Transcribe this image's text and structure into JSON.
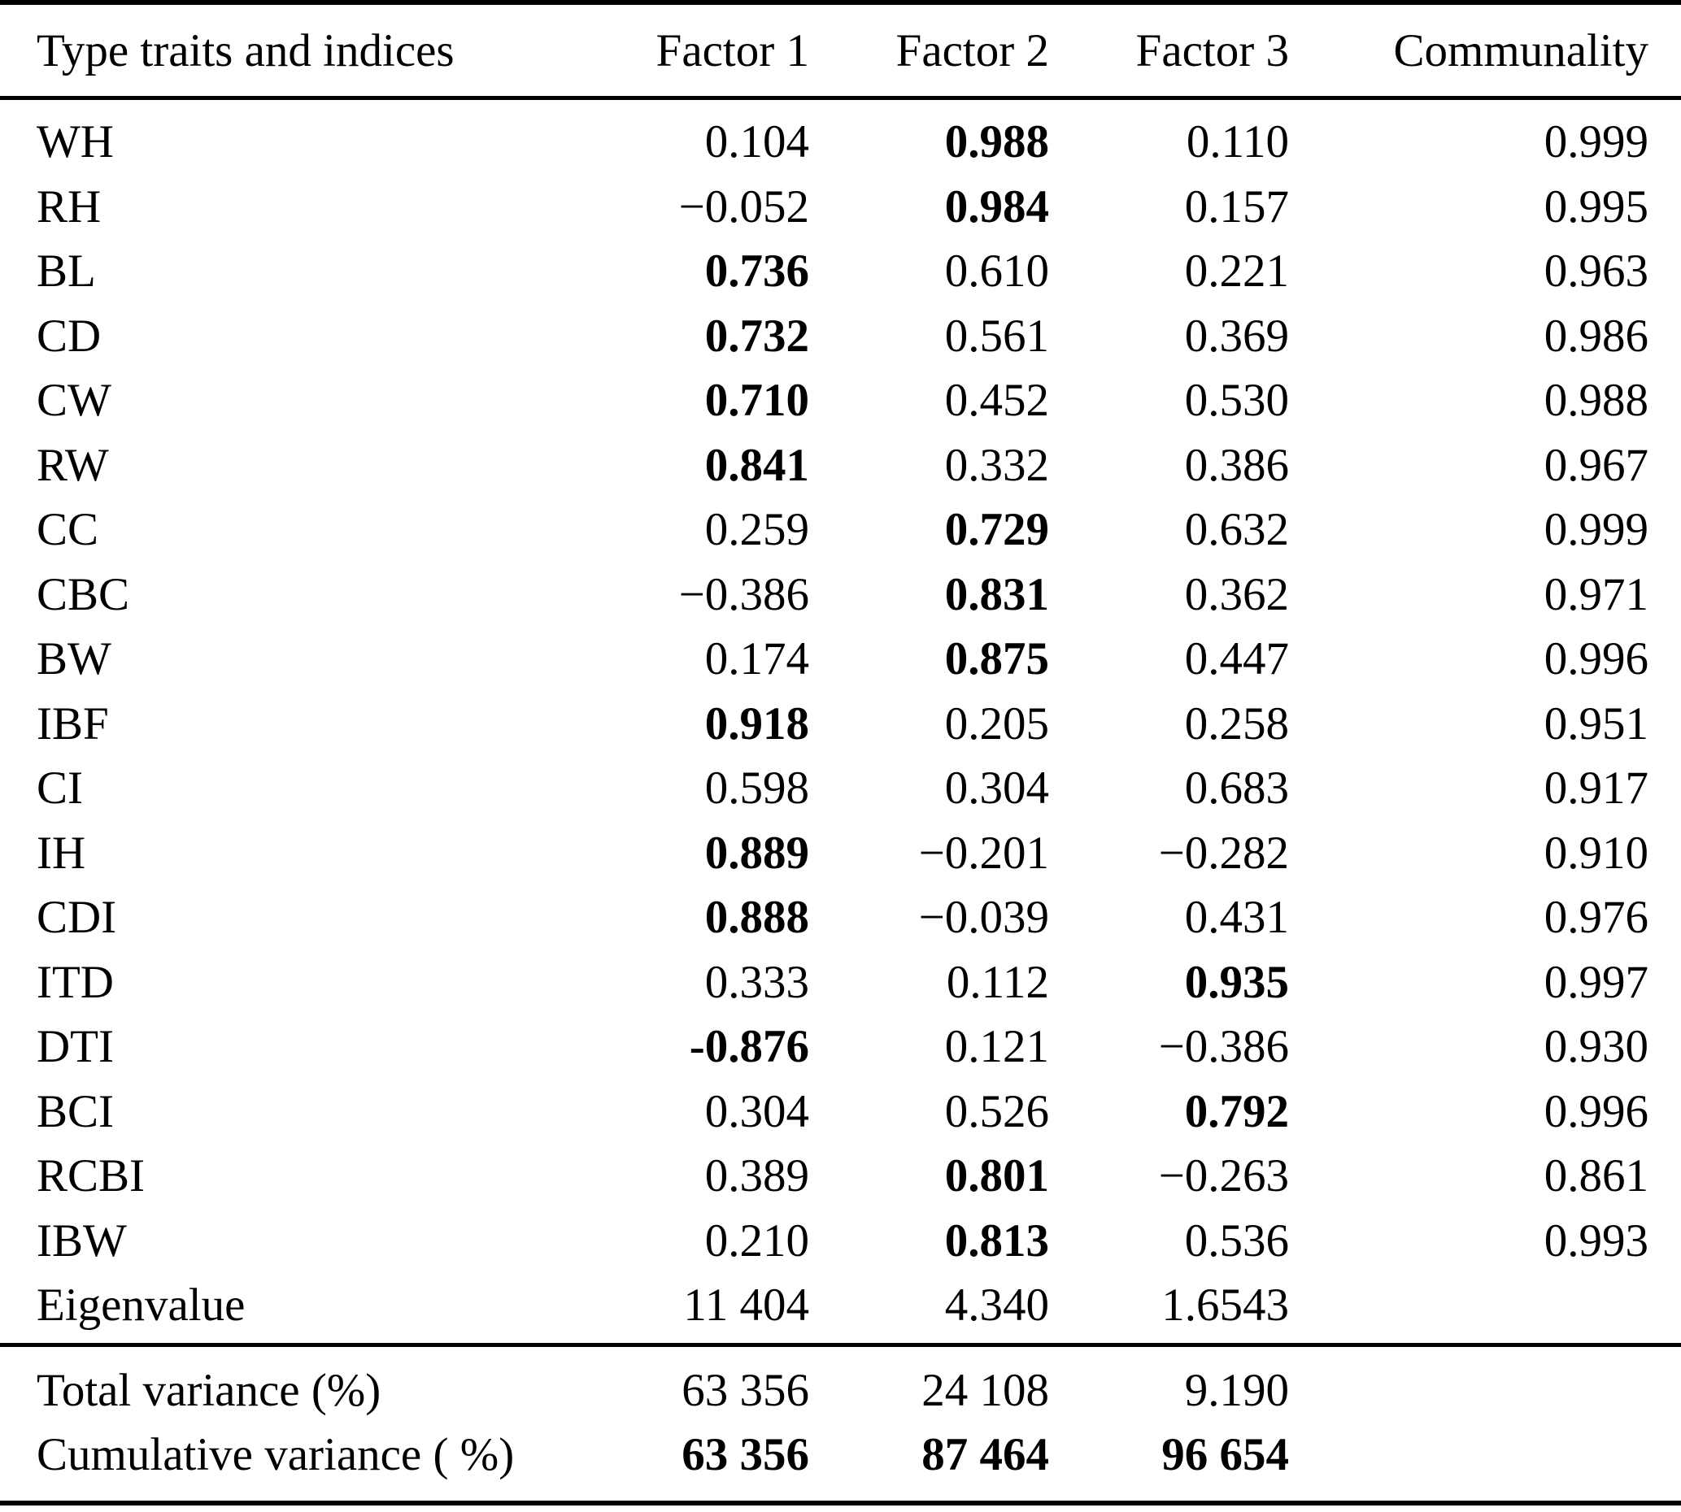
{
  "colors": {
    "text": "#000000",
    "background": "#ffffff"
  },
  "table": {
    "columns": [
      "Type traits and indices",
      "Factor 1",
      "Factor 2",
      "Factor 3",
      "Communality"
    ],
    "rows": [
      {
        "label": "WH",
        "cells": [
          "0.104",
          "0.988",
          "0.110",
          "0.999"
        ],
        "bold": [
          false,
          true,
          false,
          false
        ]
      },
      {
        "label": "RH",
        "cells": [
          "−0.052",
          "0.984",
          "0.157",
          "0.995"
        ],
        "bold": [
          false,
          true,
          false,
          false
        ]
      },
      {
        "label": "BL",
        "cells": [
          "0.736",
          "0.610",
          "0.221",
          "0.963"
        ],
        "bold": [
          true,
          false,
          false,
          false
        ]
      },
      {
        "label": "CD",
        "cells": [
          "0.732",
          "0.561",
          "0.369",
          "0.986"
        ],
        "bold": [
          true,
          false,
          false,
          false
        ]
      },
      {
        "label": "CW",
        "cells": [
          "0.710",
          "0.452",
          "0.530",
          "0.988"
        ],
        "bold": [
          true,
          false,
          false,
          false
        ]
      },
      {
        "label": "RW",
        "cells": [
          "0.841",
          "0.332",
          "0.386",
          "0.967"
        ],
        "bold": [
          true,
          false,
          false,
          false
        ]
      },
      {
        "label": "CC",
        "cells": [
          "0.259",
          "0.729",
          "0.632",
          "0.999"
        ],
        "bold": [
          false,
          true,
          false,
          false
        ]
      },
      {
        "label": "CBC",
        "cells": [
          "−0.386",
          "0.831",
          "0.362",
          "0.971"
        ],
        "bold": [
          false,
          true,
          false,
          false
        ]
      },
      {
        "label": "BW",
        "cells": [
          "0.174",
          "0.875",
          "0.447",
          "0.996"
        ],
        "bold": [
          false,
          true,
          false,
          false
        ]
      },
      {
        "label": "IBF",
        "cells": [
          "0.918",
          "0.205",
          "0.258",
          "0.951"
        ],
        "bold": [
          true,
          false,
          false,
          false
        ]
      },
      {
        "label": "CI",
        "cells": [
          "0.598",
          "0.304",
          "0.683",
          "0.917"
        ],
        "bold": [
          false,
          false,
          false,
          false
        ]
      },
      {
        "label": "IH",
        "cells": [
          "0.889",
          "−0.201",
          "−0.282",
          "0.910"
        ],
        "bold": [
          true,
          false,
          false,
          false
        ]
      },
      {
        "label": "CDI",
        "cells": [
          "0.888",
          "−0.039",
          "0.431",
          "0.976"
        ],
        "bold": [
          true,
          false,
          false,
          false
        ]
      },
      {
        "label": "ITD",
        "cells": [
          "0.333",
          "0.112",
          "0.935",
          "0.997"
        ],
        "bold": [
          false,
          false,
          true,
          false
        ]
      },
      {
        "label": "DTI",
        "cells": [
          "-0.876",
          "0.121",
          "−0.386",
          "0.930"
        ],
        "bold": [
          true,
          false,
          false,
          false
        ]
      },
      {
        "label": "BCI",
        "cells": [
          "0.304",
          "0.526",
          "0.792",
          "0.996"
        ],
        "bold": [
          false,
          false,
          true,
          false
        ]
      },
      {
        "label": "RCBI",
        "cells": [
          "0.389",
          "0.801",
          "−0.263",
          "0.861"
        ],
        "bold": [
          false,
          true,
          false,
          false
        ]
      },
      {
        "label": "IBW",
        "cells": [
          "0.210",
          "0.813",
          "0.536",
          "0.993"
        ],
        "bold": [
          false,
          true,
          false,
          false
        ]
      },
      {
        "label": "Eigenvalue",
        "cells": [
          "11 404",
          "4.340",
          "1.6543",
          ""
        ],
        "bold": [
          false,
          false,
          false,
          false
        ]
      }
    ],
    "footer_rows": [
      {
        "label": "Total variance (%)",
        "cells": [
          "63 356",
          "24 108",
          "9.190",
          ""
        ],
        "bold": [
          false,
          false,
          false,
          false
        ]
      },
      {
        "label": "Cumulative variance ( %)",
        "cells": [
          "63 356",
          "87 464",
          "96 654",
          ""
        ],
        "bold": [
          true,
          true,
          true,
          false
        ]
      }
    ]
  }
}
